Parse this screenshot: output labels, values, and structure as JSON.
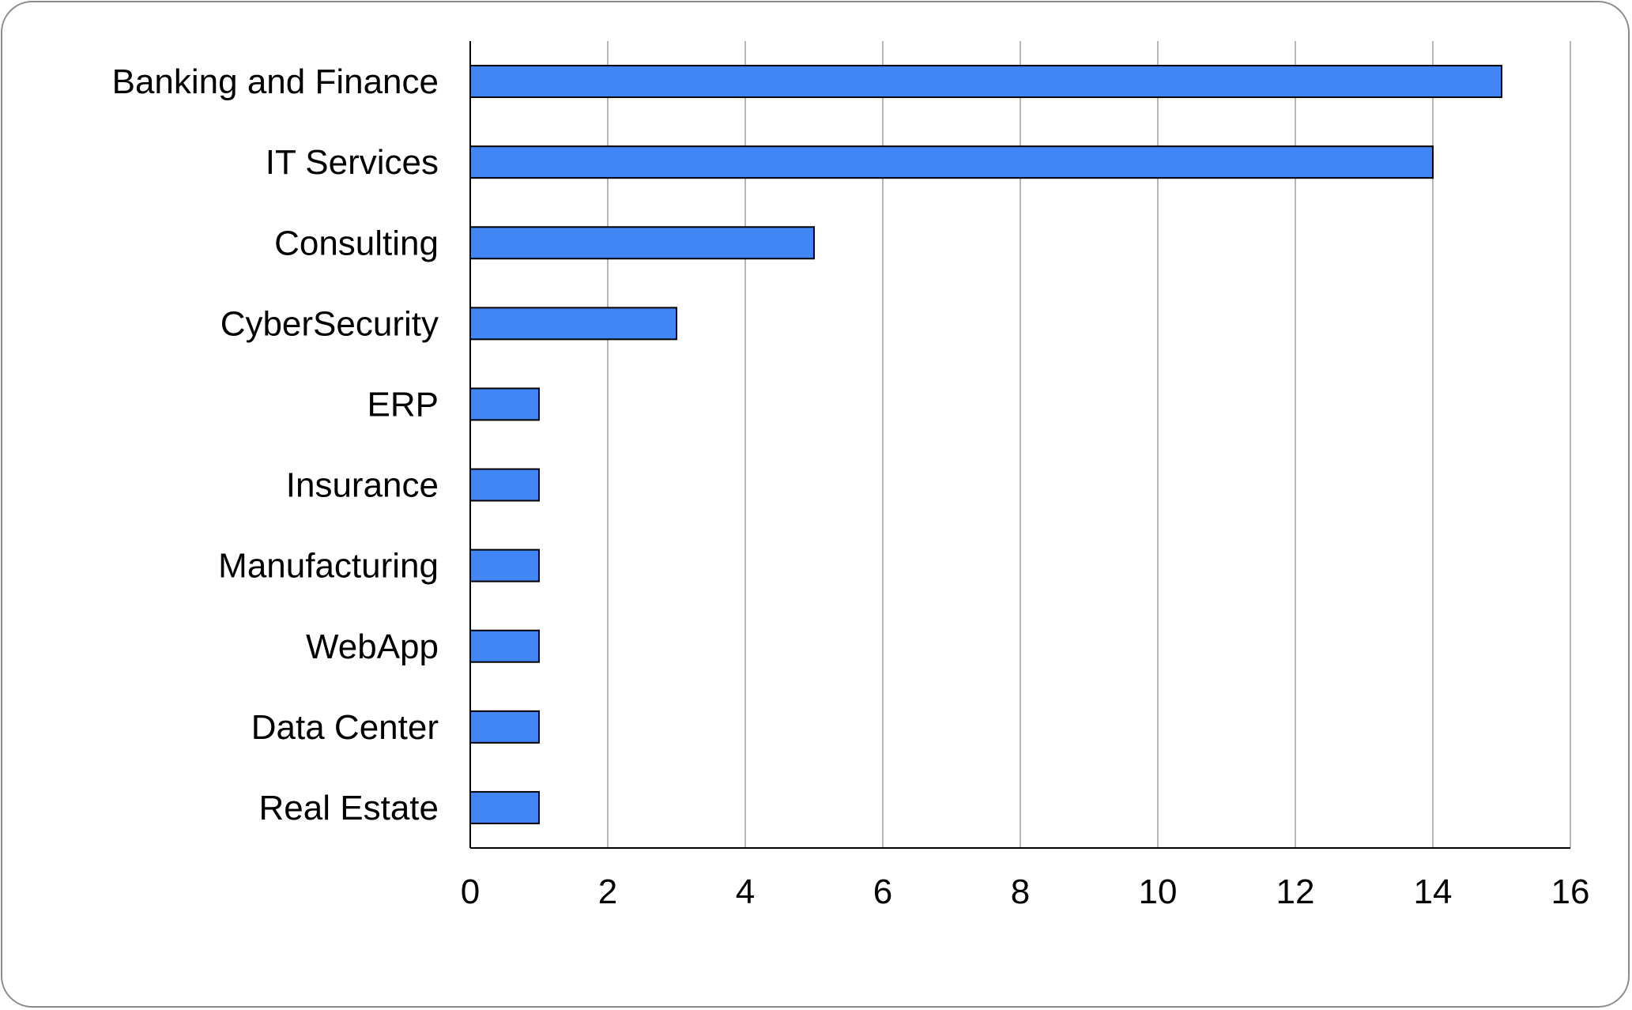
{
  "chart_data": {
    "type": "bar",
    "orientation": "horizontal",
    "title": "",
    "xlabel": "",
    "ylabel": "",
    "categories": [
      "Banking and Finance",
      "IT Services",
      "Consulting",
      "CyberSecurity",
      "ERP",
      "Insurance",
      "Manufacturing",
      "WebApp",
      "Data Center",
      "Real Estate"
    ],
    "values": [
      15,
      14,
      5,
      3,
      1,
      1,
      1,
      1,
      1,
      1
    ],
    "xlim": [
      0,
      16
    ],
    "xticks": [
      "0",
      "2",
      "4",
      "6",
      "8",
      "10",
      "12",
      "14",
      "16"
    ],
    "grid": "vertical",
    "legend": "none",
    "colors": {
      "bar_fill": "#4285f4",
      "bar_stroke": "#000000",
      "grid": "#b7b7b7",
      "axis": "#000000"
    }
  }
}
